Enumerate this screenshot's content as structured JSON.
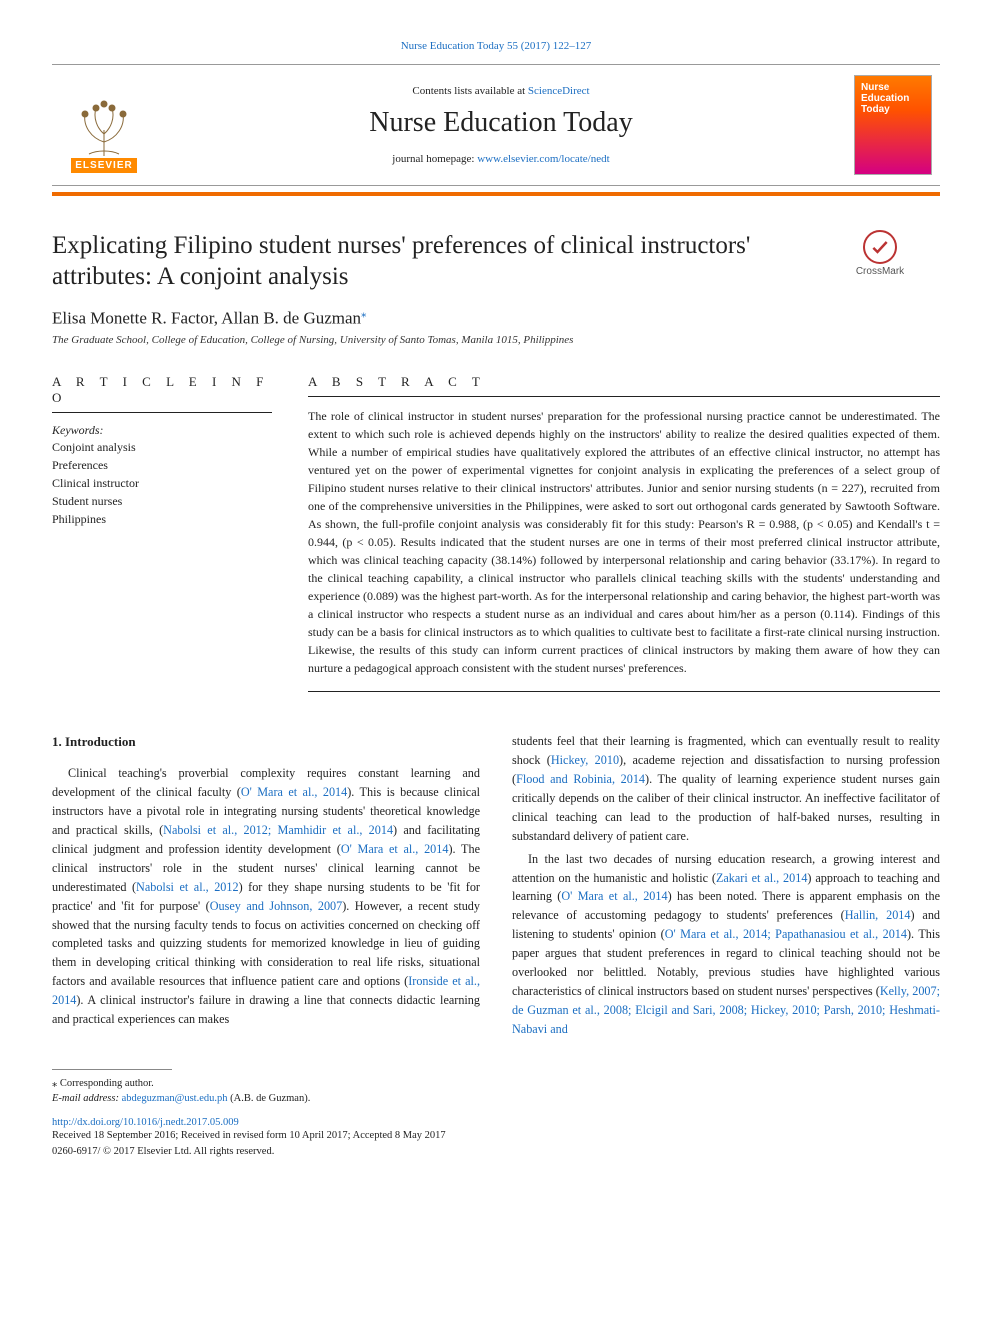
{
  "colors": {
    "link": "#1b6ec2",
    "rule_orange": "#ef6b00",
    "text": "#222222",
    "cover_gradient": [
      "#ff7a00",
      "#ff5200",
      "#d40082"
    ]
  },
  "header": {
    "top_citation_prefix": "Nurse Education Today 55 (2017) 122–127",
    "contents_line_prefix": "Contents lists available at ",
    "contents_link_text": "ScienceDirect",
    "journal_title": "Nurse Education Today",
    "homepage_prefix": "journal homepage: ",
    "homepage_url_text": "www.elsevier.com/locate/nedt",
    "publisher_word": "ELSEVIER",
    "cover_text_line1": "Nurse",
    "cover_text_line2": "Education",
    "cover_text_line3": "Today"
  },
  "crossmark": {
    "label": "CrossMark"
  },
  "article": {
    "title": "Explicating Filipino student nurses' preferences of clinical instructors' attributes: A conjoint analysis",
    "authors_line": "Elisa Monette R. Factor, Allan B. de Guzman",
    "corresponding_marker": "⁎",
    "affiliation": "The Graduate School, College of Education, College of Nursing, University of Santo Tomas, Manila 1015, Philippines"
  },
  "info": {
    "heading": "A R T I C L E   I N F O",
    "keywords_label": "Keywords:",
    "keywords": [
      "Conjoint analysis",
      "Preferences",
      "Clinical instructor",
      "Student nurses",
      "Philippines"
    ]
  },
  "abstract": {
    "heading": "A B S T R A C T",
    "text": "The role of clinical instructor in student nurses' preparation for the professional nursing practice cannot be underestimated. The extent to which such role is achieved depends highly on the instructors' ability to realize the desired qualities expected of them. While a number of empirical studies have qualitatively explored the attributes of an effective clinical instructor, no attempt has ventured yet on the power of experimental vignettes for conjoint analysis in explicating the preferences of a select group of Filipino student nurses relative to their clinical instructors' attributes. Junior and senior nursing students (n = 227), recruited from one of the comprehensive universities in the Philippines, were asked to sort out orthogonal cards generated by Sawtooth Software. As shown, the full-profile conjoint analysis was considerably fit for this study: Pearson's R = 0.988, (p < 0.05) and Kendall's t = 0.944, (p < 0.05). Results indicated that the student nurses are one in terms of their most preferred clinical instructor attribute, which was clinical teaching capacity (38.14%) followed by interpersonal relationship and caring behavior (33.17%). In regard to the clinical teaching capability, a clinical instructor who parallels clinical teaching skills with the students' understanding and experience (0.089) was the highest part-worth. As for the interpersonal relationship and caring behavior, the highest part-worth was a clinical instructor who respects a student nurse as an individual and cares about him/her as a person (0.114). Findings of this study can be a basis for clinical instructors as to which qualities to cultivate best to facilitate a first-rate clinical nursing instruction. Likewise, the results of this study can inform current practices of clinical instructors by making them aware of how they can nurture a pedagogical approach consistent with the student nurses' preferences."
  },
  "body": {
    "section_number": "1.",
    "section_title": "Introduction",
    "col1_runs": [
      {
        "t": "Clinical teaching's proverbial complexity requires constant learning and development of the clinical faculty ("
      },
      {
        "t": "O' Mara et al., 2014",
        "link": true
      },
      {
        "t": "). This is because clinical instructors have a pivotal role in integrating nursing students' theoretical knowledge and practical skills, ("
      },
      {
        "t": "Nabolsi et al., 2012; Mamhidir et al., 2014",
        "link": true
      },
      {
        "t": ") and facilitating clinical judgment and profession identity development ("
      },
      {
        "t": "O' Mara et al., 2014",
        "link": true
      },
      {
        "t": "). The clinical instructors' role in the student nurses' clinical learning cannot be underestimated ("
      },
      {
        "t": "Nabolsi et al., 2012",
        "link": true
      },
      {
        "t": ") for they shape nursing students to be 'fit for practice' and 'fit for purpose' ("
      },
      {
        "t": "Ousey and Johnson, 2007",
        "link": true
      },
      {
        "t": "). However, a recent study showed that the nursing faculty tends to focus on activities concerned on checking off completed tasks and quizzing students for memorized knowledge in lieu of guiding them in developing critical thinking with consideration to real life risks, situational factors and available resources that influence patient care and options ("
      },
      {
        "t": "Ironside et al., 2014",
        "link": true
      },
      {
        "t": "). A clinical instructor's failure in drawing a line that connects didactic learning and practical experiences can makes"
      }
    ],
    "col2_runs": [
      {
        "t": "students feel that their learning is fragmented, which can eventually result to reality shock ("
      },
      {
        "t": "Hickey, 2010",
        "link": true
      },
      {
        "t": "), academe rejection and dissatisfaction to nursing profession ("
      },
      {
        "t": "Flood and Robinia, 2014",
        "link": true
      },
      {
        "t": "). The quality of learning experience student nurses gain critically depends on the caliber of their clinical instructor. An ineffective facilitator of clinical teaching can lead to the production of half-baked nurses, resulting in substandard delivery of patient care."
      }
    ],
    "col2_p2_runs": [
      {
        "t": "In the last two decades of nursing education research, a growing interest and attention on the humanistic and holistic ("
      },
      {
        "t": "Zakari et al., 2014",
        "link": true
      },
      {
        "t": ") approach to teaching and learning ("
      },
      {
        "t": "O' Mara et al., 2014",
        "link": true
      },
      {
        "t": ") has been noted. There is apparent emphasis on the relevance of accustoming pedagogy to students' preferences ("
      },
      {
        "t": "Hallin, 2014",
        "link": true
      },
      {
        "t": ") and listening to students' opinion ("
      },
      {
        "t": "O' Mara et al., 2014; Papathanasiou et al., 2014",
        "link": true
      },
      {
        "t": "). This paper argues that student preferences in regard to clinical teaching should not be overlooked nor belittled. Notably, previous studies have highlighted various characteristics of clinical instructors based on student nurses' perspectives ("
      },
      {
        "t": "Kelly, 2007; de Guzman et al., 2008; Elcigil and Sari, 2008; Hickey, 2010; Parsh, 2010; Heshmati-Nabavi and",
        "link": true
      }
    ]
  },
  "footer": {
    "corresponding_label": "⁎ Corresponding author.",
    "email_label": "E-mail address: ",
    "email_text": "abdeguzman@ust.edu.ph",
    "email_paren": " (A.B. de Guzman).",
    "doi_text": "http://dx.doi.org/10.1016/j.nedt.2017.05.009",
    "history": "Received 18 September 2016; Received in revised form 10 April 2017; Accepted 8 May 2017",
    "copyright": "0260-6917/ © 2017 Elsevier Ltd. All rights reserved."
  }
}
